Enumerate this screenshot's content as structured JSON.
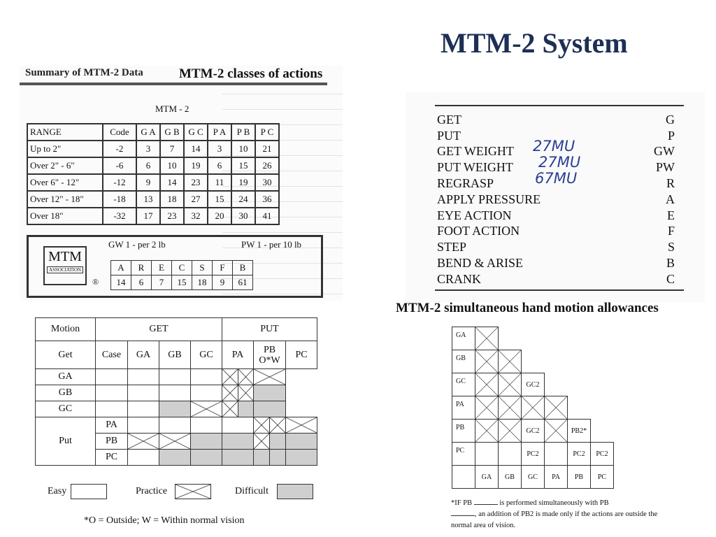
{
  "title": "MTM-2 System",
  "summary": {
    "heading": "Summary of MTM-2 Data",
    "caption": "MTM-2 classes of actions",
    "table_label": "MTM - 2",
    "headers": [
      "RANGE",
      "Code",
      "G A",
      "G B",
      "G C",
      "P A",
      "P B",
      "P C"
    ],
    "rows": [
      [
        "Up to 2\"",
        "-2",
        "3",
        "7",
        "14",
        "3",
        "10",
        "21"
      ],
      [
        "Over 2\" - 6\"",
        "-6",
        "6",
        "10",
        "19",
        "6",
        "15",
        "26"
      ],
      [
        "Over 6\" - 12\"",
        "-12",
        "9",
        "14",
        "23",
        "11",
        "19",
        "30"
      ],
      [
        "Over 12\" - 18\"",
        "-18",
        "13",
        "18",
        "27",
        "15",
        "24",
        "36"
      ],
      [
        "Over 18\"",
        "-32",
        "17",
        "23",
        "32",
        "20",
        "30",
        "41"
      ]
    ],
    "gw_label": "GW 1 - per 2 lb",
    "pw_label": "PW 1 - per 10 lb",
    "extra_headers": [
      "A",
      "R",
      "E",
      "C",
      "S",
      "F",
      "B"
    ],
    "extra_values": [
      "14",
      "6",
      "7",
      "15",
      "18",
      "9",
      "61"
    ],
    "logo_text": "MTM",
    "logo_sub": "ASSOCIATION",
    "reg_mark": "®"
  },
  "actions": {
    "items": [
      {
        "name": "GET",
        "code": "G"
      },
      {
        "name": "PUT",
        "code": "P"
      },
      {
        "name": "GET WEIGHT",
        "code": "GW"
      },
      {
        "name": "PUT WEIGHT",
        "code": "PW"
      },
      {
        "name": "REGRASP",
        "code": "R"
      },
      {
        "name": "APPLY PRESSURE",
        "code": "A"
      },
      {
        "name": "EYE ACTION",
        "code": "E"
      },
      {
        "name": "FOOT ACTION",
        "code": "F"
      },
      {
        "name": "STEP",
        "code": "S"
      },
      {
        "name": "BEND & ARISE",
        "code": "B"
      },
      {
        "name": "CRANK",
        "code": "C"
      }
    ],
    "handwritten": [
      "27MU",
      "27MU",
      "67MU"
    ]
  },
  "grid": {
    "motion_header": "Motion",
    "get_header": "GET",
    "put_header": "PUT",
    "case_header": "Case",
    "col_headers": [
      "GA",
      "GB",
      "GC",
      "PA",
      "PB\nO*W",
      "PC"
    ],
    "get_label": "Get",
    "put_label": "Put",
    "row_labels": [
      "GA",
      "GB",
      "GC",
      "PA",
      "PB",
      "PC"
    ],
    "cells": [
      [
        "e",
        "e",
        "e",
        "e",
        "pp",
        "p"
      ],
      [
        "e",
        "e",
        "e",
        "e",
        "pp",
        "d"
      ],
      [
        "e",
        "e",
        "d",
        "p",
        "pd",
        "d"
      ],
      [
        "e",
        "e",
        "e",
        "e",
        "pp",
        "p"
      ],
      [
        "p",
        "p",
        "d",
        "d",
        "pd",
        "d"
      ],
      [
        "e",
        "d",
        "d",
        "d",
        "dd",
        "d"
      ]
    ],
    "legend": {
      "easy": "Easy",
      "practice": "Practice",
      "difficult": "Difficult"
    },
    "footnote": "*O = Outside; W = Within normal vision"
  },
  "simultaneous": {
    "caption": "MTM-2 simultaneous hand motion allowances",
    "row_labels": [
      "GA",
      "GB",
      "GC",
      "PA",
      "PB",
      "PC"
    ],
    "col_labels": [
      "GA",
      "GB",
      "GC",
      "PA",
      "PB",
      "PC"
    ],
    "cells": [
      [
        "x"
      ],
      [
        "x",
        "x"
      ],
      [
        "x",
        "x",
        "GC2"
      ],
      [
        "x",
        "x",
        "x",
        "x"
      ],
      [
        "x",
        "x",
        "GC2",
        "x",
        "PB2*"
      ],
      [
        "",
        "",
        "PC2",
        "",
        "PC2",
        "PC2"
      ]
    ],
    "note_part1": "*IF PB",
    "note_part2": "is performed simultaneously with PB",
    "note_part3": ", an addition of PB2 is made only if the actions are outside the normal area of vision."
  }
}
